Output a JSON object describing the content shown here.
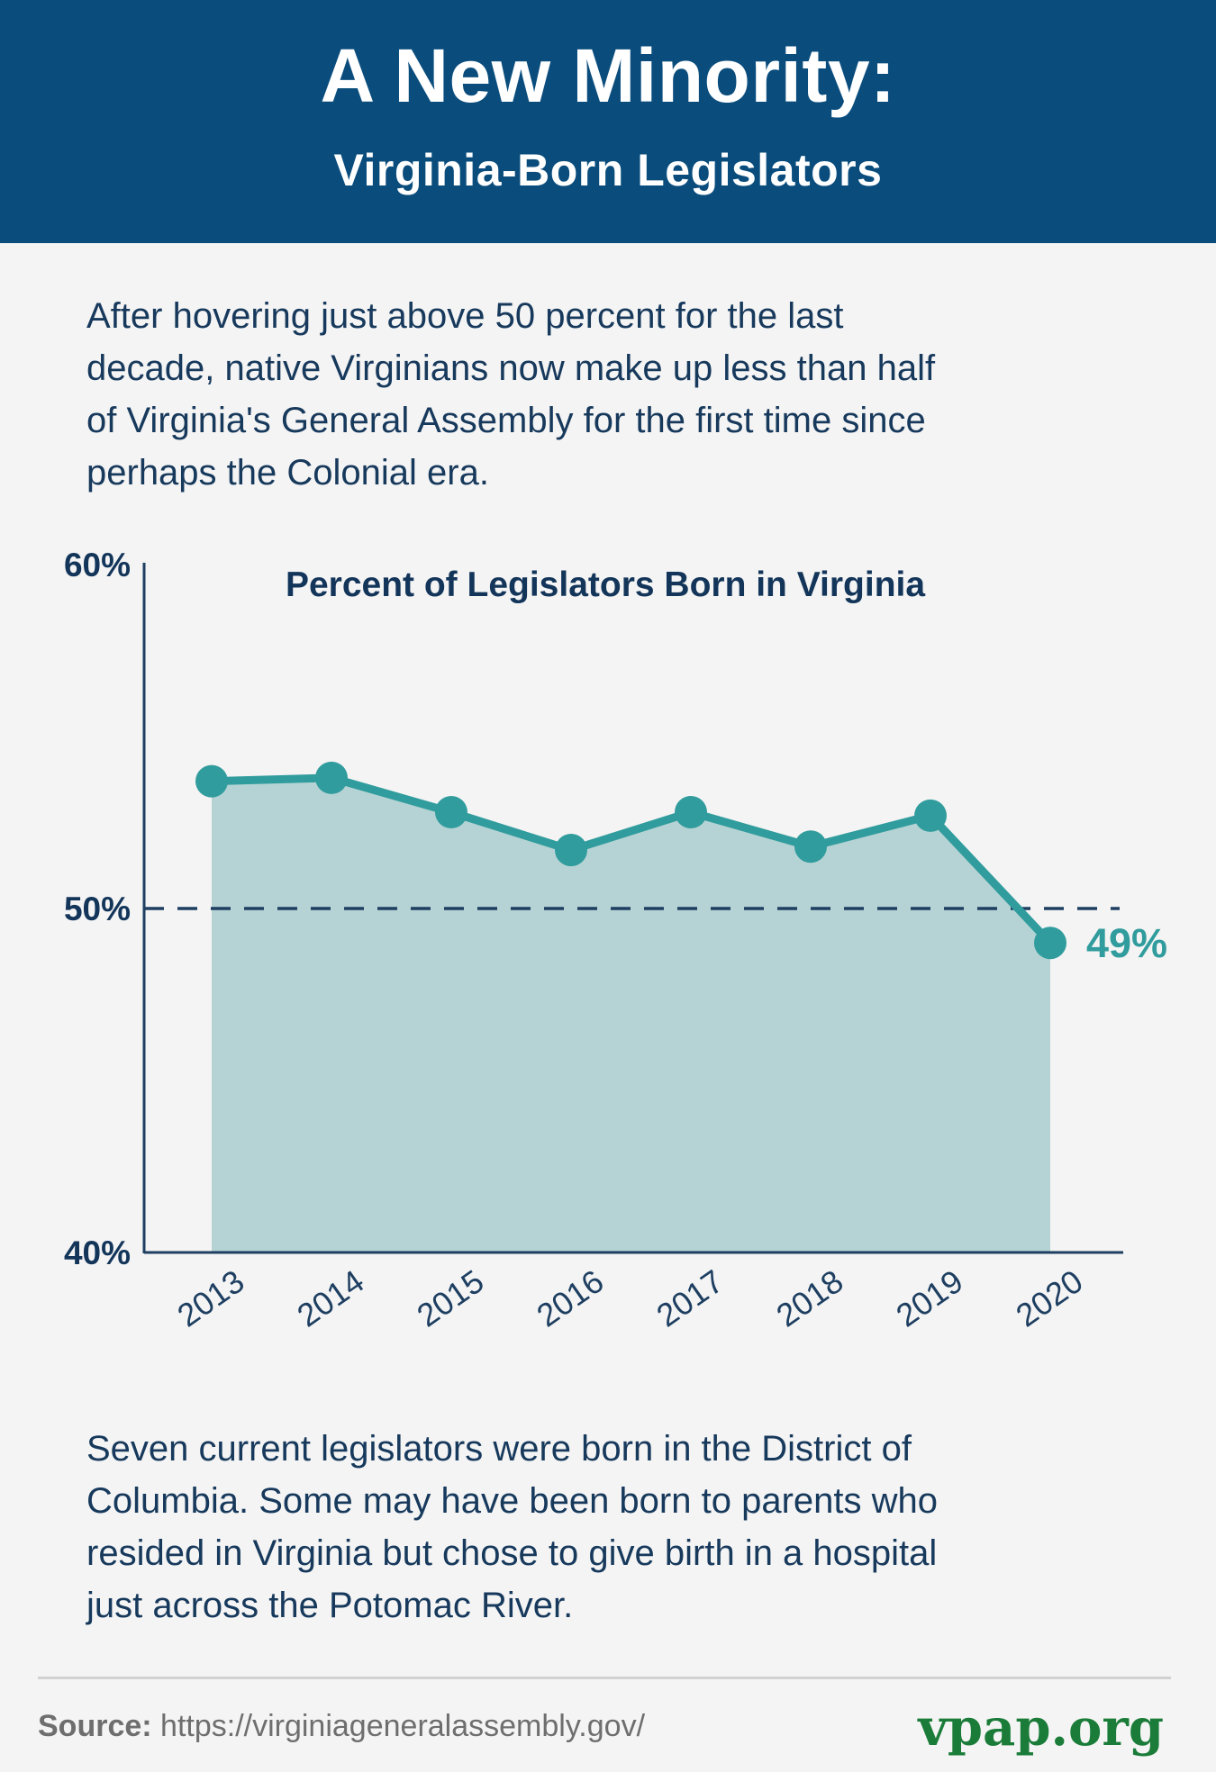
{
  "page": {
    "background": "#f4f4f4"
  },
  "header": {
    "title": "A New Minority:",
    "subtitle": "Virginia-Born Legislators",
    "background": "#0a4d7d",
    "text_color": "#ffffff"
  },
  "intro": {
    "lines": [
      "After hovering just above 50 percent for the last",
      "decade, native Virginians now make up less than half",
      "of Virginia's General Assembly for the first time since",
      "perhaps the Colonial era."
    ]
  },
  "chart_data": {
    "type": "area",
    "title": "Percent of Legislators Born in Virginia",
    "categories": [
      "2013",
      "2014",
      "2015",
      "2016",
      "2017",
      "2018",
      "2019",
      "2020"
    ],
    "series": [
      {
        "name": "Percent of Legislators Born in Virginia",
        "values": [
          53.7,
          53.8,
          52.8,
          51.7,
          52.8,
          51.8,
          52.7,
          49
        ]
      }
    ],
    "xlabel": "",
    "ylabel": "",
    "ylim": [
      40,
      60
    ],
    "yticks": [
      {
        "value": 60,
        "label": "60%"
      },
      {
        "value": 50,
        "label": "50%"
      },
      {
        "value": 40,
        "label": "40%"
      }
    ],
    "reference_line": 50,
    "annotations": [
      {
        "category": "2020",
        "text": "49%"
      }
    ],
    "grid": false,
    "legend_position": "none",
    "colors": {
      "line": "#319c9d",
      "fill": "#b5d3d4",
      "axis": "#1e3f61",
      "reference": "#1e3f61",
      "tick_text": "#13355a"
    }
  },
  "outro": {
    "lines": [
      "Seven current legislators were born in the District of",
      "Columbia. Some may have been born to parents who",
      "resided in Virginia but chose to give birth in a hospital",
      "just across the Potomac River."
    ]
  },
  "footer": {
    "source_label": "Source:",
    "source_url": "https://virginiageneralassembly.gov/",
    "logo": "vpap.org",
    "logo_color": "#1a7c38"
  }
}
